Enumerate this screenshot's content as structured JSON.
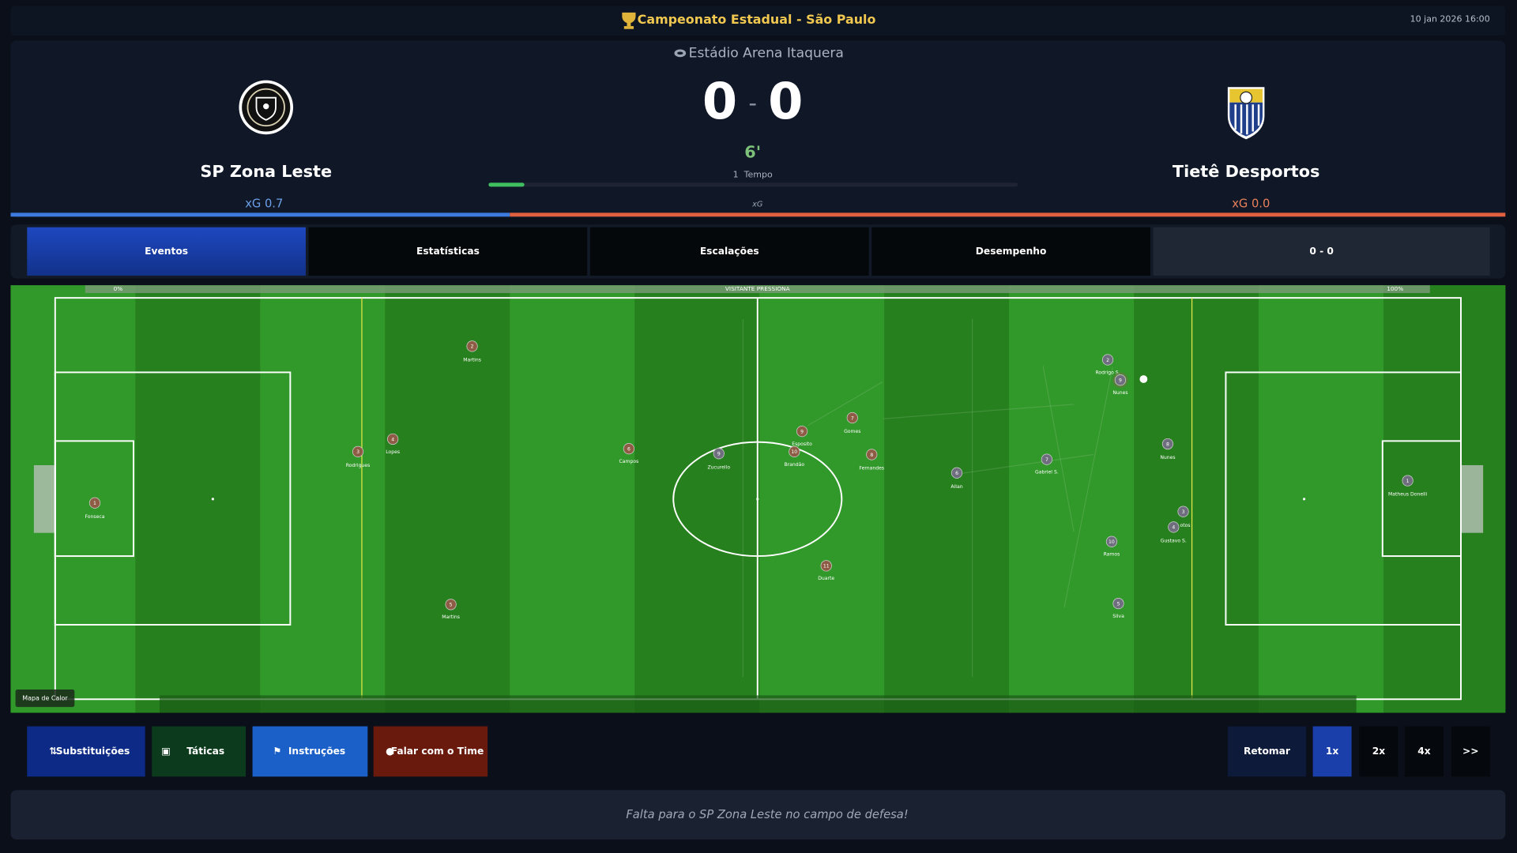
{
  "header": {
    "title": "Campeonato Estadual - São Paulo",
    "datetime": "10 jan 2026  16:00"
  },
  "scoreboard": {
    "stadium": "Estádio Arena Itaquera",
    "separator": "-",
    "minute": "6'",
    "period": "1  Tempo",
    "xg_label": "xG",
    "home": {
      "name": "SP Zona Leste",
      "score": 0,
      "xg": "xG 0.7"
    },
    "away": {
      "name": "Tietê Desportos",
      "score": 0,
      "xg": "xG 0.0"
    }
  },
  "tabs": [
    "Eventos",
    "Estatísticas",
    "Escalações",
    "Desempenho",
    "0 - 0"
  ],
  "pitch": {
    "pressure_min": "0%",
    "pressure_label": "VISITANTE PRESSIONA",
    "pressure_max": "100%",
    "heatmap_button": "Mapa de Calor",
    "home_players": [
      {
        "number": 1,
        "name": "Fonseca"
      },
      {
        "number": 2,
        "name": "Martins"
      },
      {
        "number": 3,
        "name": "Rodrigues"
      },
      {
        "number": 4,
        "name": "Lopes"
      },
      {
        "number": 5,
        "name": "Martins"
      },
      {
        "number": 6,
        "name": "Campos"
      },
      {
        "number": 7,
        "name": "Gomes"
      },
      {
        "number": 8,
        "name": "Fernandes"
      },
      {
        "number": 9,
        "name": "Esposito"
      },
      {
        "number": 10,
        "name": "Brandão"
      },
      {
        "number": 11,
        "name": "Duarte"
      }
    ],
    "away_players": [
      {
        "number": 1,
        "name": "Matheus Donelli"
      },
      {
        "number": 2,
        "name": "Rodrigo S."
      },
      {
        "number": 9,
        "name": "Nunes"
      },
      {
        "number": 8,
        "name": "Nunes"
      },
      {
        "number": 7,
        "name": "Gabriel S."
      },
      {
        "number": 6,
        "name": "Allan"
      },
      {
        "number": 9,
        "name": "Zucurello"
      },
      {
        "number": 3,
        "name": "otos"
      },
      {
        "number": 4,
        "name": "Gustavo S."
      },
      {
        "number": 10,
        "name": "Ramos"
      },
      {
        "number": 5,
        "name": "Silva"
      }
    ]
  },
  "controls": {
    "left": [
      "Substituições",
      "Táticas",
      "Instruções",
      "Falar com o Time"
    ],
    "right": [
      "Retomar",
      "1x",
      "2x",
      "4x",
      ">>"
    ]
  },
  "commentary": "Falta para o SP Zona Leste no campo de defesa!"
}
